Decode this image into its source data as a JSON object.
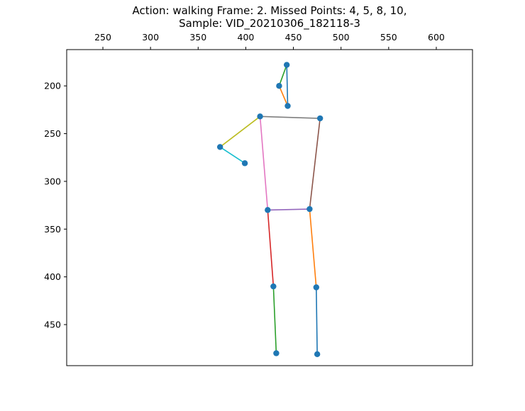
{
  "chart_data": {
    "type": "scatter",
    "title_line1": "Action: walking   Frame: 2. Missed Points: 4, 5, 8, 10,",
    "title_line2": "Sample: VID_20210306_182118-3",
    "xlim": [
      212,
      638
    ],
    "ylim": [
      493,
      162
    ],
    "x_axis_position": "top",
    "y_inverted": true,
    "grid": false,
    "x_ticks": [
      250,
      300,
      350,
      400,
      450,
      500,
      550,
      600
    ],
    "y_ticks": [
      200,
      250,
      300,
      350,
      400,
      450
    ],
    "marker_color": "#1f77b4",
    "points": [
      {
        "x": 443,
        "y": 178
      },
      {
        "x": 435,
        "y": 200
      },
      {
        "x": 444,
        "y": 221
      },
      {
        "x": 415,
        "y": 232
      },
      {
        "x": 478,
        "y": 234
      },
      {
        "x": 373,
        "y": 264
      },
      {
        "x": 399,
        "y": 281
      },
      {
        "x": 423,
        "y": 330
      },
      {
        "x": 467,
        "y": 329
      },
      {
        "x": 429,
        "y": 410
      },
      {
        "x": 474,
        "y": 411
      },
      {
        "x": 432,
        "y": 480
      },
      {
        "x": 475,
        "y": 481
      }
    ],
    "segments": [
      {
        "from": [
          443,
          178
        ],
        "to": [
          444,
          221
        ],
        "color": "#1f77b4"
      },
      {
        "from": [
          443,
          178
        ],
        "to": [
          435,
          200
        ],
        "color": "#2ca02c"
      },
      {
        "from": [
          435,
          200
        ],
        "to": [
          444,
          221
        ],
        "color": "#ff7f0e"
      },
      {
        "from": [
          415,
          232
        ],
        "to": [
          478,
          234
        ],
        "color": "#7f7f7f"
      },
      {
        "from": [
          415,
          232
        ],
        "to": [
          373,
          264
        ],
        "color": "#bcbd22"
      },
      {
        "from": [
          373,
          264
        ],
        "to": [
          399,
          281
        ],
        "color": "#17becf"
      },
      {
        "from": [
          478,
          234
        ],
        "to": [
          467,
          329
        ],
        "color": "#8c564b"
      },
      {
        "from": [
          415,
          232
        ],
        "to": [
          423,
          330
        ],
        "color": "#e377c2"
      },
      {
        "from": [
          423,
          330
        ],
        "to": [
          467,
          329
        ],
        "color": "#9467bd"
      },
      {
        "from": [
          423,
          330
        ],
        "to": [
          429,
          410
        ],
        "color": "#d62728"
      },
      {
        "from": [
          467,
          329
        ],
        "to": [
          474,
          411
        ],
        "color": "#ff7f0e"
      },
      {
        "from": [
          429,
          410
        ],
        "to": [
          432,
          480
        ],
        "color": "#2ca02c"
      },
      {
        "from": [
          474,
          411
        ],
        "to": [
          475,
          481
        ],
        "color": "#1f77b4"
      }
    ]
  }
}
